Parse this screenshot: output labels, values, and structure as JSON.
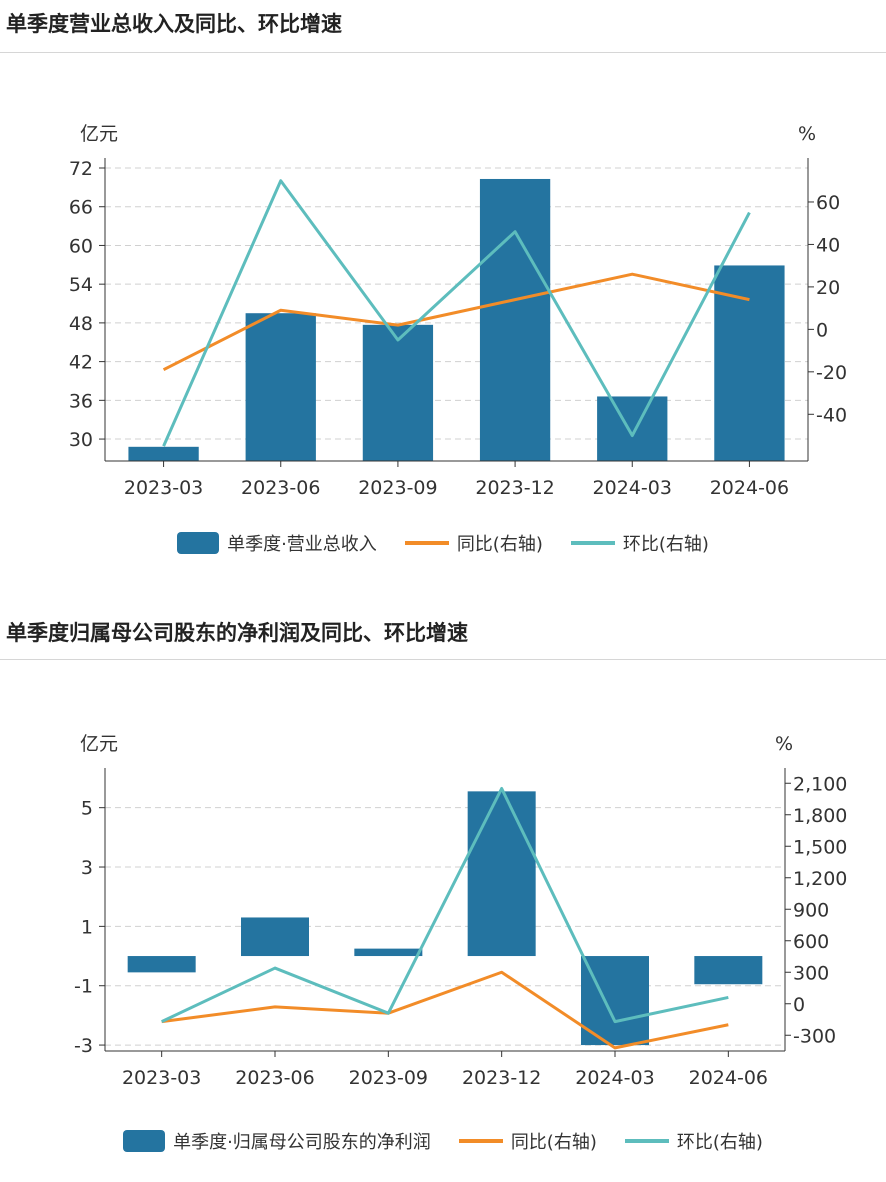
{
  "colors": {
    "bar": "#2474a0",
    "yoy": "#f28c28",
    "qoq": "#5dbdbd",
    "grid": "#d0d0d0",
    "axis": "#333333"
  },
  "chart1": {
    "title": "单季度营业总收入及同比、环比增速",
    "legend": {
      "bar": "单季度·营业总收入",
      "yoy": "同比(右轴)",
      "qoq": "环比(右轴)"
    },
    "chart_data": {
      "type": "bar+line",
      "title": "单季度营业总收入及同比、环比增速",
      "categories": [
        "2023-03",
        "2023-06",
        "2023-09",
        "2023-12",
        "2024-03",
        "2024-06"
      ],
      "ylabel": "亿元",
      "ylabel_right": "%",
      "ylim": [
        26.6,
        72
      ],
      "ylim_right": [
        -62,
        76
      ],
      "yticks": [
        "72",
        "66",
        "60",
        "54",
        "48",
        "42",
        "36",
        "30"
      ],
      "yticks_right": [
        "60",
        "40",
        "20",
        "0",
        "-20",
        "-40"
      ],
      "series": [
        {
          "name": "单季度·营业总收入",
          "axis": "left",
          "kind": "bar",
          "values": [
            28.8,
            49.5,
            47.7,
            70.3,
            36.6,
            56.9
          ]
        },
        {
          "name": "同比(右轴)",
          "axis": "right",
          "kind": "line",
          "values": [
            -19,
            9,
            2,
            14,
            26,
            14
          ]
        },
        {
          "name": "环比(右轴)",
          "axis": "right",
          "kind": "line",
          "values": [
            -55,
            70,
            -5,
            46,
            -50,
            55
          ]
        }
      ]
    }
  },
  "chart2": {
    "title": "单季度归属母公司股东的净利润及同比、环比增速",
    "legend": {
      "bar": "单季度·归属母公司股东的净利润",
      "yoy": "同比(右轴)",
      "qoq": "环比(右轴)"
    },
    "chart_data": {
      "type": "bar+line",
      "title": "单季度归属母公司股东的净利润及同比、环比增速",
      "categories": [
        "2023-03",
        "2023-06",
        "2023-09",
        "2023-12",
        "2024-03",
        "2024-06"
      ],
      "ylabel": "亿元",
      "ylabel_right": "%",
      "ylim": [
        -3.2,
        6
      ],
      "ylim_right": [
        -450,
        2150
      ],
      "yticks": [
        "5",
        "3",
        "1",
        "-1",
        "-3"
      ],
      "yticks_right": [
        "2,100",
        "1,800",
        "1,500",
        "1,200",
        "900",
        "600",
        "300",
        "0",
        "-300"
      ],
      "series": [
        {
          "name": "单季度·归属母公司股东的净利润",
          "axis": "left",
          "kind": "bar",
          "values": [
            -0.55,
            1.3,
            0.25,
            5.55,
            -3.0,
            -0.95
          ]
        },
        {
          "name": "同比(右轴)",
          "axis": "right",
          "kind": "line",
          "values": [
            -170,
            -30,
            -90,
            300,
            -420,
            -200
          ]
        },
        {
          "name": "环比(右轴)",
          "axis": "right",
          "kind": "line",
          "values": [
            -170,
            340,
            -90,
            2050,
            -170,
            60
          ]
        }
      ]
    }
  }
}
